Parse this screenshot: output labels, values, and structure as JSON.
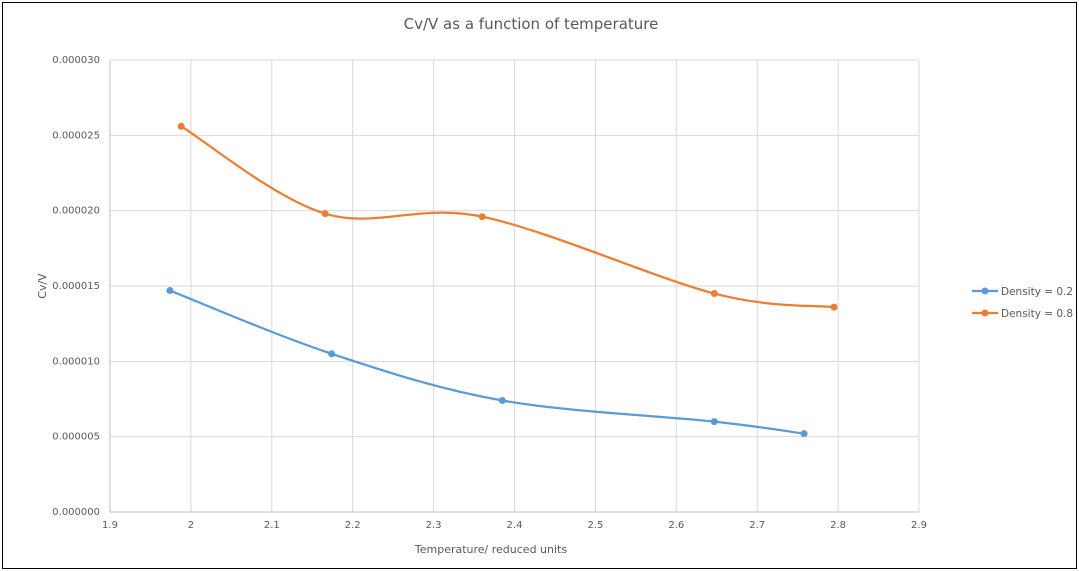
{
  "chart_data": {
    "type": "line",
    "title": "Cv/V as a function of temperature",
    "xlabel": "Temperature/ reduced units",
    "ylabel": "Cv/V",
    "xlim": [
      1.9,
      2.9
    ],
    "ylim": [
      0,
      3e-05
    ],
    "x_ticks": [
      "1.9",
      "2",
      "2.1",
      "2.2",
      "2.3",
      "2.4",
      "2.5",
      "2.6",
      "2.7",
      "2.8",
      "2.9"
    ],
    "y_ticks": [
      "0.000000",
      "0.000005",
      "0.000010",
      "0.000015",
      "0.000020",
      "0.000025",
      "0.000030"
    ],
    "grid": true,
    "smoothed": true,
    "legend_position": "right",
    "series": [
      {
        "name": "Density = 0.2",
        "color": "#5B9BD5",
        "x": [
          1.974,
          2.174,
          2.385,
          2.647,
          2.758
        ],
        "y": [
          1.47e-05,
          1.05e-05,
          7.4e-06,
          6e-06,
          5.2e-06
        ]
      },
      {
        "name": "Density = 0.8",
        "color": "#ED7D31",
        "x": [
          1.988,
          2.166,
          2.36,
          2.647,
          2.795
        ],
        "y": [
          2.56e-05,
          1.98e-05,
          1.96e-05,
          1.45e-05,
          1.36e-05
        ]
      }
    ]
  }
}
